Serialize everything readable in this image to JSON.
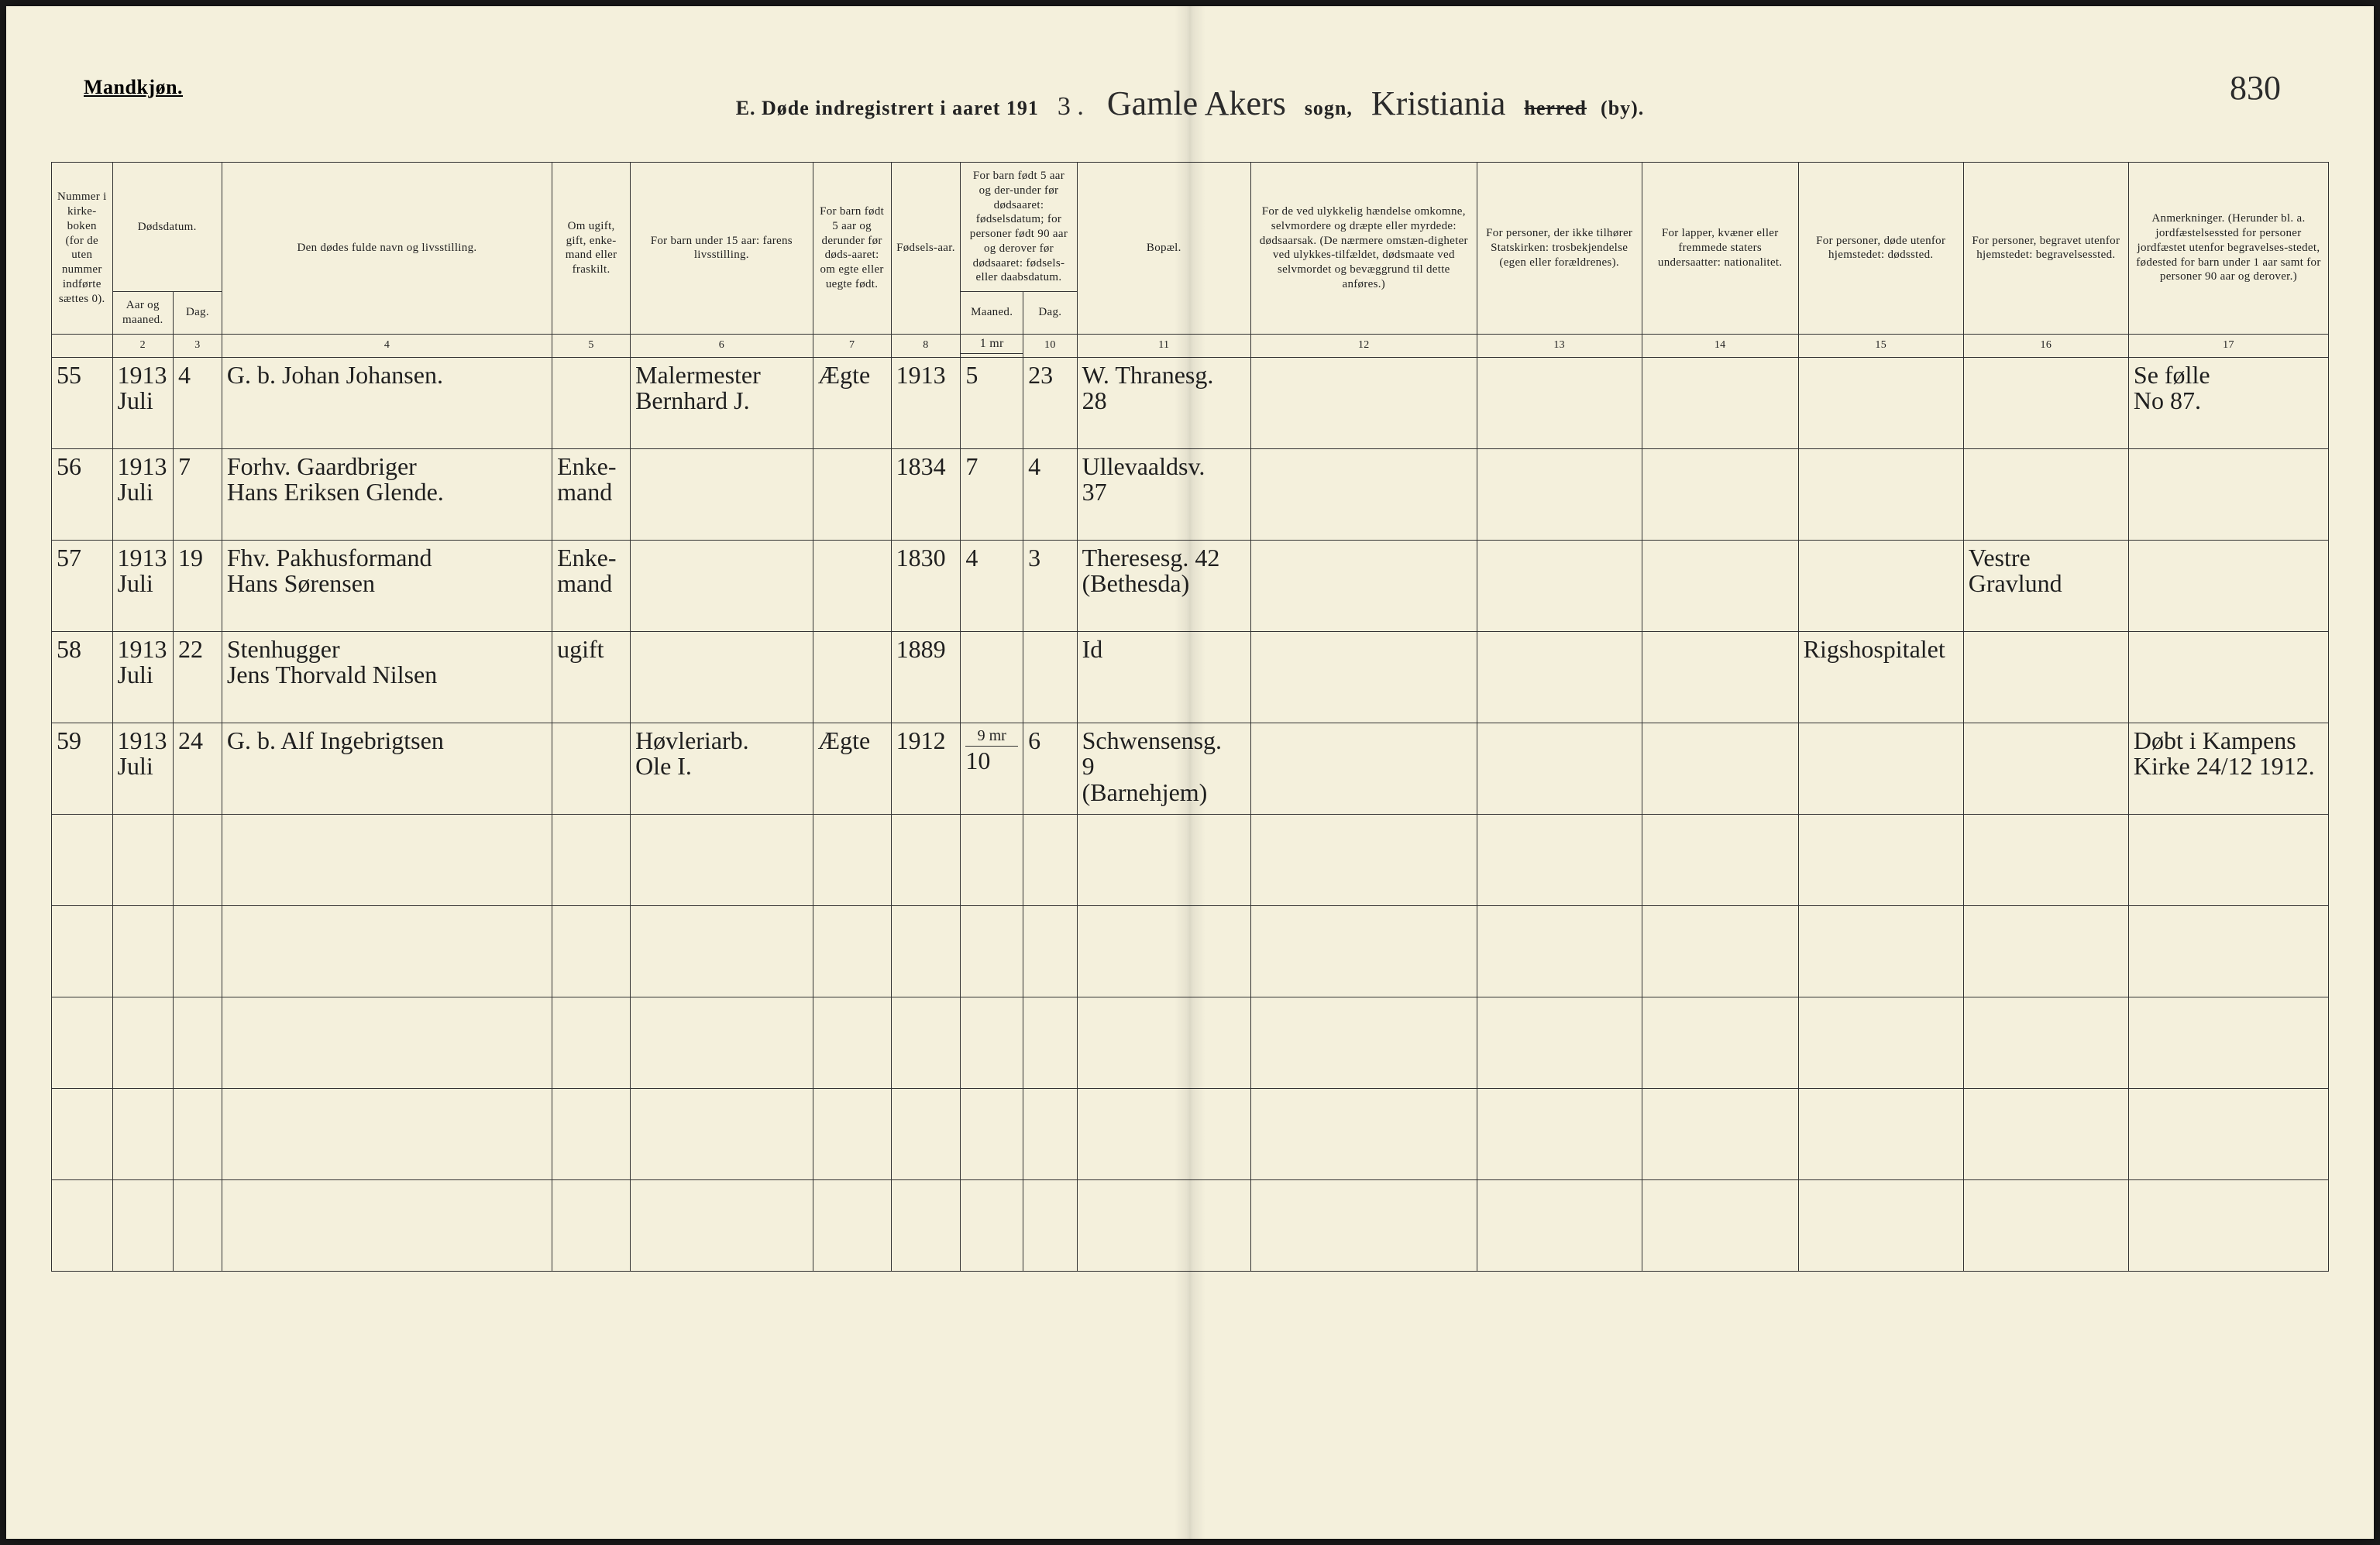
{
  "page": {
    "gender_heading": "Mandkjøn.",
    "title_prefix": "E.  Døde indregistrert i aaret 191",
    "year_suffix": "3 .",
    "sogn_script": "Gamle Akers",
    "sogn_label": "sogn,",
    "by_script": "Kristiania",
    "herred_struck": "herred",
    "by_label": "(by).",
    "page_number": "830"
  },
  "columns": {
    "c1": "Nummer i kirke-boken (for de uten nummer indførte sættes 0).",
    "c2g": "Dødsdatum.",
    "c2": "Aar og maaned.",
    "c3": "Dag.",
    "c4": "Den dødes fulde navn og livsstilling.",
    "c5": "Om ugift, gift, enke-mand eller fraskilt.",
    "c6": "For barn under 15 aar: farens livsstilling.",
    "c7": "For barn født 5 aar og derunder før døds-aaret: om egte eller uegte født.",
    "c8": "Fødsels-aar.",
    "c9g": "For barn født 5 aar og der-under før dødsaaret: fødselsdatum; for personer født 90 aar og derover før dødsaaret: fødsels- eller daabsdatum.",
    "c9": "Maaned.",
    "c10": "Dag.",
    "c11": "Bopæl.",
    "c12": "For de ved ulykkelig hændelse omkomne, selvmordere og dræpte eller myrdede: dødsaarsak. (De nærmere omstæn-digheter ved ulykkes-tilfældet, dødsmaate ved selvmordet og bevæggrund til dette anføres.)",
    "c13": "For personer, der ikke tilhører Statskirken: trosbekjendelse (egen eller forældrenes).",
    "c14": "For lapper, kvæner eller fremmede staters undersaatter: nationalitet.",
    "c15": "For personer, døde utenfor hjemstedet: dødssted.",
    "c16": "For personer, begravet utenfor hjemstedet: begravelsessted.",
    "c17": "Anmerkninger. (Herunder bl. a. jordfæstelsessted for personer jordfæstet utenfor begravelses-stedet, fødested for barn under 1 aar samt for personer 90 aar og derover.)"
  },
  "colnums": [
    "",
    "2",
    "3",
    "4",
    "5",
    "6",
    "7",
    "8",
    "",
    "10",
    "11",
    "12",
    "13",
    "14",
    "15",
    "16",
    "17"
  ],
  "colnum9_sup": "1 mr",
  "rows": [
    {
      "num": "55",
      "year_month": "1913\nJuli",
      "day": "4",
      "name": "G. b. Johan Johansen.",
      "status": "",
      "father": "Malermester\nBernhard J.",
      "legit": "Ægte",
      "birthyear": "1913",
      "bm": "5",
      "bd": "23",
      "residence": "W. Thranesg.\n28",
      "c12": "",
      "c13": "",
      "c14": "",
      "c15": "",
      "c16": "",
      "notes": "Se følle\nNo 87."
    },
    {
      "num": "56",
      "year_month": "1913\nJuli",
      "day": "7",
      "name": "Forhv. Gaardbriger\nHans Eriksen Glende.",
      "status": "Enke-\nmand",
      "father": "",
      "legit": "",
      "birthyear": "1834",
      "bm": "7",
      "bd": "4",
      "residence": "Ullevaaldsv.\n37",
      "c12": "",
      "c13": "",
      "c14": "",
      "c15": "",
      "c16": "",
      "notes": ""
    },
    {
      "num": "57",
      "year_month": "1913\nJuli",
      "day": "19",
      "name": "Fhv. Pakhusformand\nHans Sørensen",
      "status": "Enke-\nmand",
      "father": "",
      "legit": "",
      "birthyear": "1830",
      "bm": "4",
      "bd": "3",
      "residence": "Theresesg. 42\n(Bethesda)",
      "c12": "",
      "c13": "",
      "c14": "",
      "c15": "",
      "c16": "Vestre\nGravlund",
      "notes": ""
    },
    {
      "num": "58",
      "year_month": "1913\nJuli",
      "day": "22",
      "name": "Stenhugger\nJens Thorvald Nilsen",
      "status": "ugift",
      "father": "",
      "legit": "",
      "birthyear": "1889",
      "bm": "",
      "bd": "",
      "residence": "Id",
      "c12": "",
      "c13": "",
      "c14": "",
      "c15": "Rigshospitalet",
      "c16": "",
      "notes": ""
    },
    {
      "num": "59",
      "year_month": "1913\nJuli",
      "day": "24",
      "name": "G. b. Alf Ingebrigtsen",
      "status": "",
      "father": "Høvleriarb.\nOle I.",
      "legit": "Ægte",
      "birthyear": "1912",
      "bm_sup": "9 mr",
      "bm": "10",
      "bd": "6",
      "residence": "Schwensensg.\n9\n(Barnehjem)",
      "c12": "",
      "c13": "",
      "c14": "",
      "c15": "",
      "c16": "",
      "notes": "Døbt i Kampens\nKirke 24/12 1912."
    }
  ],
  "empty_rows": 5
}
